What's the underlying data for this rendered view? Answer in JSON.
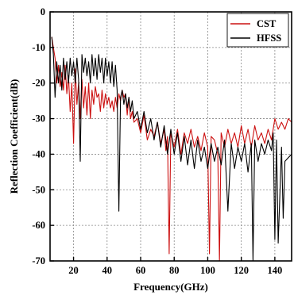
{
  "chart_data": {
    "type": "line",
    "xlabel": "Frequency(GHz)",
    "ylabel": "Reflection Coefficient(dB)",
    "xlim": [
      6,
      150
    ],
    "ylim": [
      -70,
      0
    ],
    "x_ticks": [
      20,
      40,
      60,
      80,
      100,
      120,
      140
    ],
    "y_ticks": [
      0,
      -10,
      -20,
      -30,
      -40,
      -50,
      -60,
      -70
    ],
    "grid": true,
    "legend_position": "top-right",
    "series": [
      {
        "name": "CST",
        "color": "#cc1111",
        "x": [
          7,
          8,
          9,
          10,
          11,
          12,
          13,
          14,
          15,
          16,
          17,
          18,
          19,
          20,
          21,
          22,
          23,
          24,
          25,
          26,
          27,
          28,
          29,
          30,
          31,
          32,
          33,
          34,
          35,
          36,
          37,
          38,
          39,
          40,
          41,
          42,
          43,
          44,
          45,
          46,
          47,
          48,
          49,
          50,
          51,
          52,
          53,
          54,
          55,
          56,
          58,
          60,
          62,
          64,
          66,
          68,
          70,
          72,
          74,
          75,
          76,
          77,
          78,
          80,
          82,
          84,
          86,
          88,
          90,
          92,
          94,
          96,
          98,
          100,
          101,
          102,
          104,
          106,
          107,
          108,
          110,
          112,
          114,
          116,
          118,
          120,
          122,
          124,
          126,
          128,
          130,
          132,
          134,
          136,
          138,
          140,
          142,
          144,
          146,
          148,
          150
        ],
        "y": [
          -7,
          -10,
          -13,
          -20,
          -15,
          -21,
          -17,
          -22,
          -15,
          -23,
          -18,
          -28,
          -20,
          -37,
          -16,
          -26,
          -20,
          -30,
          -19,
          -27,
          -21,
          -29,
          -20,
          -30,
          -22,
          -26,
          -21,
          -24,
          -23,
          -28,
          -22,
          -27,
          -23,
          -26,
          -24,
          -27,
          -25,
          -28,
          -24,
          -27,
          -23,
          -25,
          -22,
          -24,
          -23,
          -29,
          -24,
          -30,
          -28,
          -31,
          -30,
          -34,
          -29,
          -36,
          -33,
          -35,
          -31,
          -37,
          -33,
          -39,
          -35,
          -68,
          -34,
          -38,
          -33,
          -40,
          -34,
          -37,
          -33,
          -38,
          -35,
          -39,
          -34,
          -38,
          -68,
          -35,
          -36,
          -40,
          -70,
          -34,
          -38,
          -33,
          -37,
          -34,
          -38,
          -32,
          -37,
          -33,
          -38,
          -32,
          -36,
          -34,
          -37,
          -33,
          -36,
          -30,
          -33,
          -31,
          -33,
          -30,
          -31
        ]
      },
      {
        "name": "HFSS",
        "color": "#000000",
        "x": [
          7,
          8,
          9,
          10,
          11,
          12,
          13,
          14,
          15,
          16,
          17,
          18,
          19,
          20,
          21,
          22,
          23,
          24,
          25,
          26,
          27,
          28,
          29,
          30,
          31,
          32,
          33,
          34,
          35,
          36,
          37,
          38,
          39,
          40,
          41,
          42,
          43,
          44,
          45,
          46,
          47,
          48,
          49,
          50,
          51,
          52,
          53,
          54,
          55,
          56,
          58,
          60,
          62,
          64,
          66,
          68,
          70,
          72,
          74,
          76,
          78,
          80,
          82,
          84,
          86,
          88,
          90,
          92,
          94,
          96,
          98,
          100,
          102,
          104,
          106,
          108,
          110,
          112,
          114,
          116,
          118,
          120,
          122,
          124,
          126,
          127,
          128,
          130,
          132,
          134,
          136,
          138,
          139,
          140,
          141,
          142,
          144,
          145,
          146,
          148,
          150
        ],
        "y": [
          -7,
          -12,
          -24,
          -14,
          -20,
          -15,
          -22,
          -13,
          -19,
          -14,
          -20,
          -13,
          -18,
          -14,
          -20,
          -13,
          -19,
          -42,
          -12,
          -17,
          -13,
          -18,
          -14,
          -20,
          -12,
          -18,
          -13,
          -19,
          -12,
          -17,
          -13,
          -20,
          -13,
          -18,
          -14,
          -20,
          -14,
          -21,
          -15,
          -22,
          -56,
          -24,
          -22,
          -26,
          -23,
          -27,
          -24,
          -28,
          -25,
          -30,
          -28,
          -33,
          -28,
          -34,
          -30,
          -36,
          -31,
          -38,
          -32,
          -40,
          -33,
          -40,
          -34,
          -42,
          -35,
          -43,
          -36,
          -44,
          -36,
          -42,
          -38,
          -44,
          -37,
          -42,
          -38,
          -43,
          -36,
          -56,
          -37,
          -44,
          -38,
          -42,
          -37,
          -45,
          -37,
          -70,
          -36,
          -42,
          -37,
          -40,
          -36,
          -39,
          -34,
          -64,
          -36,
          -65,
          -38,
          -58,
          -42,
          -41,
          -40
        ]
      }
    ]
  }
}
